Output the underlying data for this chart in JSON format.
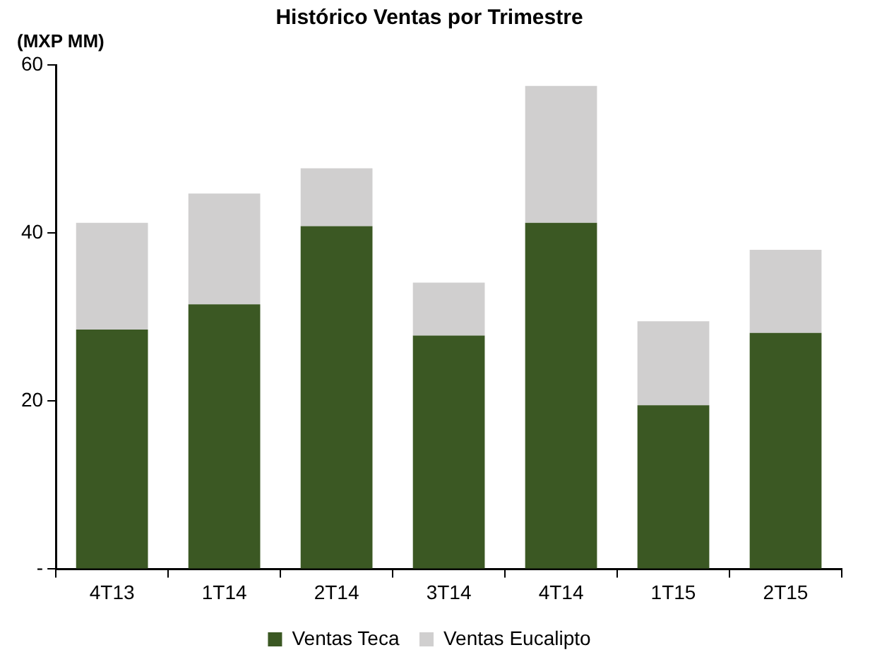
{
  "chart_data": {
    "type": "bar",
    "title": "Histórico Ventas por Trimestre",
    "ylabel": "(MXP MM)",
    "categories": [
      "4T13",
      "1T14",
      "2T14",
      "3T14",
      "4T14",
      "1T15",
      "2T15"
    ],
    "stacked": true,
    "series": [
      {
        "name": "Ventas Teca",
        "color": "#3b5823",
        "values": [
          28.5,
          31.5,
          40.8,
          27.8,
          41.2,
          19.5,
          28.1
        ]
      },
      {
        "name": "Ventas Eucalipto",
        "color": "#d0cfcf",
        "values": [
          12.7,
          13.2,
          6.9,
          6.3,
          16.3,
          10.0,
          9.9
        ]
      }
    ],
    "ylim": [
      0,
      60
    ],
    "yticks": [
      {
        "value": 0,
        "label": "-"
      },
      20,
      40,
      60
    ],
    "grid": false,
    "legend": "bottom"
  }
}
